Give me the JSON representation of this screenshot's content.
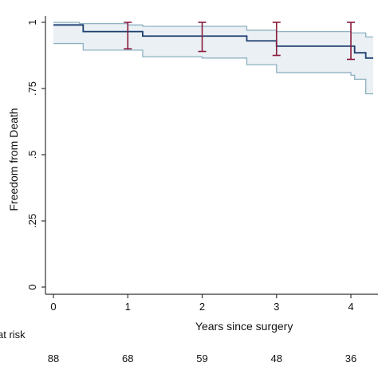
{
  "chart_data": {
    "type": "line",
    "title": "",
    "xlabel": "Years since surgery",
    "ylabel": "Freedom from Death",
    "xlim": [
      0,
      4.3
    ],
    "ylim": [
      0,
      1
    ],
    "x_ticks": [
      0,
      1,
      2,
      3,
      4
    ],
    "x_tick_labels": [
      "0",
      "1",
      "2",
      "3",
      "4"
    ],
    "y_ticks": [
      0,
      0.25,
      0.5,
      0.75,
      1
    ],
    "y_tick_labels": [
      "0",
      ".25",
      ".5",
      ".75",
      "1"
    ],
    "grid": false,
    "colors": {
      "line": "#1f3f70",
      "band_fill": "#eaf0f4",
      "band_edge": "#8fb1c1",
      "error_bar": "#8a1c3c",
      "axis": "#333333"
    },
    "series": [
      {
        "role": "estimate",
        "x": [
          0,
          0.2,
          0.4,
          1.0,
          1.2,
          2.0,
          2.6,
          3.0,
          3.5,
          4.0,
          4.05,
          4.2,
          4.3
        ],
        "y": [
          0.99,
          0.99,
          0.965,
          0.965,
          0.948,
          0.948,
          0.93,
          0.91,
          0.91,
          0.91,
          0.885,
          0.865,
          0.865
        ]
      },
      {
        "role": "upper_ci",
        "x": [
          0,
          0.35,
          1.0,
          1.2,
          2.0,
          2.6,
          3.0,
          3.5,
          4.0,
          4.2,
          4.3
        ],
        "y": [
          1.0,
          0.995,
          0.99,
          0.985,
          0.985,
          0.97,
          0.965,
          0.965,
          0.96,
          0.945,
          0.945
        ]
      },
      {
        "role": "lower_ci",
        "x": [
          0,
          0.2,
          0.4,
          1.0,
          1.2,
          2.0,
          2.6,
          3.0,
          3.5,
          4.0,
          4.05,
          4.2,
          4.3
        ],
        "y": [
          0.92,
          0.92,
          0.895,
          0.895,
          0.87,
          0.865,
          0.84,
          0.81,
          0.81,
          0.8,
          0.785,
          0.73,
          0.73
        ]
      }
    ],
    "error_bars": [
      {
        "x": 1,
        "low": 0.9,
        "high": 1.0
      },
      {
        "x": 2,
        "low": 0.89,
        "high": 1.0
      },
      {
        "x": 3,
        "low": 0.875,
        "high": 1.0
      },
      {
        "x": 4,
        "low": 0.86,
        "high": 1.0
      }
    ],
    "at_risk": {
      "label": "at risk",
      "x": [
        0,
        1,
        2,
        3,
        4
      ],
      "values": [
        "88",
        "68",
        "59",
        "48",
        "36"
      ]
    }
  }
}
